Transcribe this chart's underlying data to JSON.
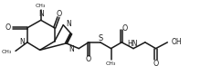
{
  "bg_color": "#ffffff",
  "line_color": "#1a1a1a",
  "line_width": 1.1,
  "font_size": 5.2,
  "figsize": [
    2.32,
    0.83
  ],
  "dpi": 100,
  "xlim": [
    0.0,
    10.5
  ],
  "ylim": [
    0.5,
    4.2
  ]
}
